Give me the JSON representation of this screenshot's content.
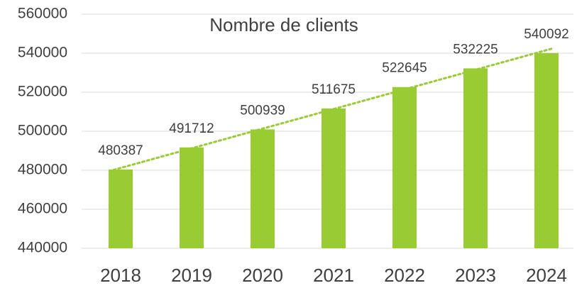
{
  "chart_data": {
    "type": "bar",
    "title": "Nombre de clients",
    "categories": [
      "2018",
      "2019",
      "2020",
      "2021",
      "2022",
      "2023",
      "2024"
    ],
    "values": [
      480387,
      491712,
      500939,
      511675,
      522645,
      532225,
      540092
    ],
    "color": "#99cc33",
    "ylim": [
      440000,
      560000
    ],
    "yticks": [
      440000,
      460000,
      480000,
      500000,
      520000,
      540000,
      560000
    ],
    "grid": true,
    "trendline": true
  }
}
